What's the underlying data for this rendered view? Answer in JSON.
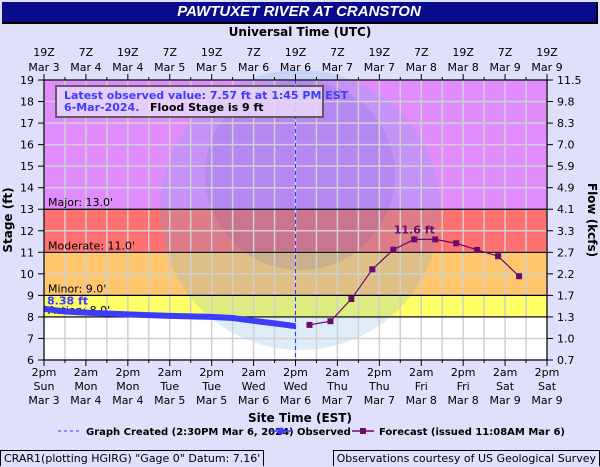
{
  "title": "PAWTUXET RIVER AT CRANSTON",
  "top_axis_title": "Universal Time (UTC)",
  "bottom_axis_title": "Site Time (EST)",
  "info_box": {
    "line1": "Latest observed value: 7.57 ft at 1:45 PM EST",
    "line2_date": "6-Mar-2024.",
    "line2_flood": "Flood Stage is 9 ft"
  },
  "footer_left": "CRAR1(plotting HGIRG) \"Gage 0\" Datum: 7.16'",
  "footer_right": "Observations courtesy of US Geological Survey",
  "chart_data": {
    "type": "line",
    "title": "PAWTUXET RIVER AT CRANSTON",
    "ylabel": "Stage (ft)",
    "y2label": "Flow (kcfs)",
    "ylim": [
      6,
      19
    ],
    "yticks": [
      6,
      7,
      8,
      9,
      10,
      11,
      12,
      13,
      14,
      15,
      16,
      17,
      18,
      19
    ],
    "y2ticks": [
      "0.7",
      "1.0",
      "1.3",
      "1.7",
      "2.2",
      "2.7",
      "3.3",
      "4.1",
      "4.9",
      "5.9",
      "7.0",
      "8.3",
      "9.8",
      "11.5"
    ],
    "x_hours_range": [
      0,
      144
    ],
    "top_ticks": [
      [
        "19Z",
        "Mar 3"
      ],
      [
        "7Z",
        "Mar 4"
      ],
      [
        "19Z",
        "Mar 4"
      ],
      [
        "7Z",
        "Mar 5"
      ],
      [
        "19Z",
        "Mar 5"
      ],
      [
        "7Z",
        "Mar 6"
      ],
      [
        "19Z",
        "Mar 6"
      ],
      [
        "7Z",
        "Mar 7"
      ],
      [
        "19Z",
        "Mar 7"
      ],
      [
        "7Z",
        "Mar 8"
      ],
      [
        "19Z",
        "Mar 8"
      ],
      [
        "7Z",
        "Mar 9"
      ],
      [
        "19Z",
        "Mar 9"
      ]
    ],
    "bottom_ticks": [
      [
        "2pm",
        "Sun",
        "Mar 3"
      ],
      [
        "2am",
        "Mon",
        "Mar 4"
      ],
      [
        "2pm",
        "Mon",
        "Mar 4"
      ],
      [
        "2am",
        "Tue",
        "Mar 5"
      ],
      [
        "2pm",
        "Tue",
        "Mar 5"
      ],
      [
        "2am",
        "Wed",
        "Mar 6"
      ],
      [
        "2pm",
        "Wed",
        "Mar 6"
      ],
      [
        "2am",
        "Thu",
        "Mar 7"
      ],
      [
        "2pm",
        "Thu",
        "Mar 7"
      ],
      [
        "2am",
        "Fri",
        "Mar 8"
      ],
      [
        "2pm",
        "Fri",
        "Mar 8"
      ],
      [
        "2am",
        "Sat",
        "Mar 9"
      ],
      [
        "2pm",
        "Sat",
        "Mar 9"
      ]
    ],
    "flood_categories": [
      {
        "label": "Action: 8.0'",
        "stage": 8,
        "color": "#ffff66"
      },
      {
        "label": "Minor: 9.0'",
        "stage": 9,
        "color": "#ffc66e"
      },
      {
        "label": "Moderate: 11.0'",
        "stage": 11,
        "color": "#ff7070"
      },
      {
        "label": "Major: 13.0'",
        "stage": 13,
        "color": "#e08cff"
      }
    ],
    "graph_created_hour": 72,
    "observed": {
      "name": "Observed",
      "color": "#3c3cff",
      "hours": [
        0,
        6,
        12,
        24,
        36,
        48,
        54,
        60,
        66,
        72
      ],
      "values": [
        8.38,
        8.25,
        8.2,
        8.12,
        8.05,
        8.0,
        7.95,
        7.82,
        7.7,
        7.57
      ],
      "label": "8.38 ft"
    },
    "forecast": {
      "name": "Forecast (issued 11:08AM Mar 6)",
      "color": "#6a0a6a",
      "hours": [
        76,
        82,
        88,
        94,
        100,
        106,
        112,
        118,
        124,
        130,
        136
      ],
      "values": [
        7.63,
        7.8,
        8.83,
        10.21,
        11.12,
        11.6,
        11.6,
        11.42,
        11.11,
        10.82,
        9.89
      ],
      "label": "11.6 ft"
    },
    "legend": {
      "created": "Graph Created (2:30PM Mar 6, 2024)",
      "observed": "Observed",
      "forecast": "Forecast (issued 11:08AM Mar 6)"
    }
  }
}
